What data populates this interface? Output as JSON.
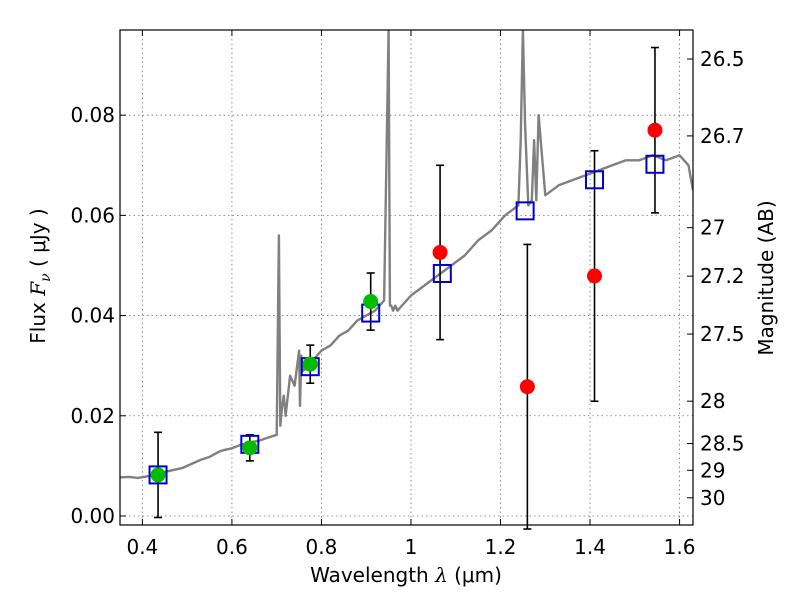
{
  "chart_data": {
    "type": "scatter",
    "xlabel": {
      "prefix": "Wavelength  ",
      "symbol": "λ",
      "unit": " (μm)"
    },
    "ylabel": {
      "prefix": "Flux  ",
      "symbol": "F",
      "subscript": "ν",
      "unit": "  ( μJy )"
    },
    "y2label": "Magnitude (AB)",
    "xlim": [
      0.35,
      1.63
    ],
    "ylim": [
      -0.0018,
      0.097
    ],
    "grid": true,
    "x_ticks": [
      {
        "v": 0.4,
        "label": "0.4"
      },
      {
        "v": 0.6,
        "label": "0.6"
      },
      {
        "v": 0.8,
        "label": "0.8"
      },
      {
        "v": 1.0,
        "label": "1"
      },
      {
        "v": 1.2,
        "label": "1.2"
      },
      {
        "v": 1.4,
        "label": "1.4"
      },
      {
        "v": 1.6,
        "label": "1.6"
      }
    ],
    "y_ticks": [
      {
        "v": 0.0,
        "label": "0.00"
      },
      {
        "v": 0.02,
        "label": "0.02"
      },
      {
        "v": 0.04,
        "label": "0.04"
      },
      {
        "v": 0.06,
        "label": "0.06"
      },
      {
        "v": 0.08,
        "label": "0.08"
      }
    ],
    "y2_ticks": [
      {
        "mag": 26.5,
        "label": "26.5"
      },
      {
        "mag": 26.7,
        "label": "26.7"
      },
      {
        "mag": 27.0,
        "label": "27"
      },
      {
        "mag": 27.2,
        "label": "27.2"
      },
      {
        "mag": 27.5,
        "label": "27.5"
      },
      {
        "mag": 28.0,
        "label": "28"
      },
      {
        "mag": 28.5,
        "label": "28.5"
      },
      {
        "mag": 29.0,
        "label": "29"
      },
      {
        "mag": 30.0,
        "label": "30"
      }
    ],
    "colors": {
      "model": "#808080",
      "model_points": "#0000cc",
      "detections": "#00bb00",
      "upper": "#ff0000",
      "errorbar": "#000000"
    },
    "series": [
      {
        "kind": "line",
        "x": [
          0.35,
          0.37,
          0.39,
          0.41,
          0.43,
          0.45,
          0.47,
          0.49,
          0.51,
          0.53,
          0.55,
          0.57,
          0.58,
          0.6,
          0.62,
          0.64,
          0.66,
          0.68,
          0.7,
          0.705,
          0.708,
          0.712,
          0.716,
          0.72,
          0.73,
          0.74,
          0.75,
          0.752,
          0.755,
          0.76,
          0.77,
          0.78,
          0.79,
          0.8,
          0.82,
          0.84,
          0.86,
          0.88,
          0.9,
          0.92,
          0.94,
          0.95,
          0.953,
          0.956,
          0.96,
          0.965,
          0.97,
          1.0,
          1.03,
          1.06,
          1.09,
          1.12,
          1.15,
          1.18,
          1.21,
          1.24,
          1.245,
          1.25,
          1.255,
          1.262,
          1.27,
          1.275,
          1.28,
          1.285,
          1.3,
          1.33,
          1.36,
          1.39,
          1.42,
          1.45,
          1.48,
          1.51,
          1.54,
          1.57,
          1.6,
          1.62,
          1.63
        ],
        "y": [
          0.0077,
          0.0078,
          0.0076,
          0.0079,
          0.0082,
          0.0088,
          0.0092,
          0.0096,
          0.0104,
          0.0112,
          0.0118,
          0.0128,
          0.0131,
          0.0135,
          0.0142,
          0.0147,
          0.015,
          0.0156,
          0.0162,
          0.056,
          0.018,
          0.022,
          0.024,
          0.02,
          0.028,
          0.026,
          0.033,
          0.022,
          0.032,
          0.029,
          0.03,
          0.031,
          0.032,
          0.033,
          0.034,
          0.036,
          0.037,
          0.039,
          0.04,
          0.041,
          0.043,
          0.097,
          0.042,
          0.042,
          0.041,
          0.042,
          0.041,
          0.044,
          0.046,
          0.048,
          0.05,
          0.052,
          0.055,
          0.057,
          0.06,
          0.062,
          0.075,
          0.097,
          0.078,
          0.062,
          0.063,
          0.075,
          0.063,
          0.08,
          0.064,
          0.066,
          0.067,
          0.068,
          0.069,
          0.07,
          0.071,
          0.071,
          0.072,
          0.071,
          0.072,
          0.07,
          0.065
        ]
      },
      {
        "kind": "model_points",
        "x": [
          0.435,
          0.64,
          0.775,
          0.91,
          1.07,
          1.255,
          1.41,
          1.545
        ],
        "y": [
          0.0082,
          0.0143,
          0.0298,
          0.0405,
          0.0484,
          0.0609,
          0.0671,
          0.0702
        ]
      },
      {
        "kind": "detections",
        "x": [
          0.435,
          0.64,
          0.775,
          0.91
        ],
        "y": [
          0.0082,
          0.0136,
          0.0303,
          0.0428
        ],
        "err": [
          0.0085,
          0.0026,
          0.0038,
          0.0057
        ]
      },
      {
        "kind": "upper",
        "x": [
          1.065,
          1.26,
          1.41,
          1.545
        ],
        "y": [
          0.0526,
          0.0258,
          0.0479,
          0.077
        ],
        "err": [
          0.0174,
          0.0284,
          0.025,
          0.0165
        ]
      }
    ]
  }
}
